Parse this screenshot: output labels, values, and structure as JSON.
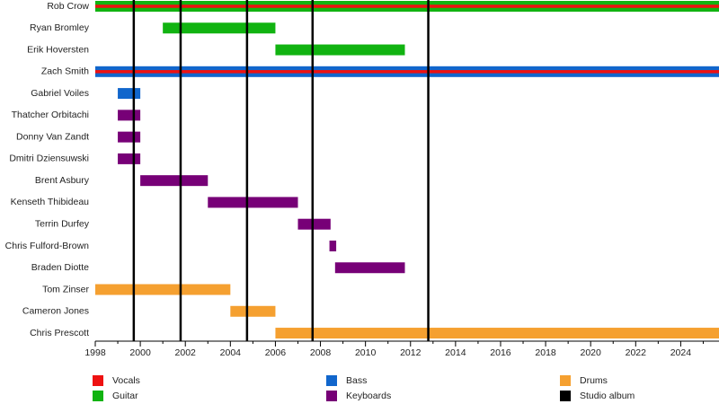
{
  "chart_data": {
    "type": "timeline",
    "categories": [
      "Rob Crow",
      "Ryan Bromley",
      "Erik Hoversten",
      "Zach Smith",
      "Gabriel Voiles",
      "Thatcher Orbitachi",
      "Donny Van Zandt",
      "Dmitri Dziensuwski",
      "Brent Asbury",
      "Kenseth Thibideau",
      "Terrin Durfey",
      "Chris Fulford-Brown",
      "Braden Diotte",
      "Tom Zinser",
      "Cameron Jones",
      "Chris Prescott"
    ],
    "series": [
      {
        "name": "Vocals",
        "color": "#ee1111",
        "values": [
          [
            1998,
            2025.7
          ],
          null,
          null,
          [
            1998,
            2025.7
          ],
          null,
          null,
          null,
          null,
          null,
          null,
          null,
          null,
          null,
          null,
          null,
          null
        ]
      },
      {
        "name": "Guitar",
        "color": "#11b311",
        "values": [
          [
            1998,
            2025.7
          ],
          [
            2001,
            2006
          ],
          [
            2006,
            2011.75
          ],
          null,
          null,
          null,
          null,
          null,
          null,
          null,
          null,
          null,
          null,
          null,
          null,
          null
        ]
      },
      {
        "name": "Bass",
        "color": "#1166cc",
        "values": [
          null,
          null,
          null,
          [
            1998,
            2025.7
          ],
          [
            1999,
            2000
          ],
          null,
          null,
          null,
          null,
          null,
          null,
          null,
          null,
          null,
          null,
          null
        ]
      },
      {
        "name": "Keyboards",
        "color": "#770077",
        "values": [
          null,
          null,
          null,
          null,
          null,
          [
            1999,
            2000
          ],
          [
            1999,
            2000
          ],
          [
            1999,
            2000
          ],
          [
            2000,
            2003
          ],
          [
            2003,
            2007
          ],
          [
            2007,
            2008.45
          ],
          [
            2008.4,
            2008.7
          ],
          [
            2008.65,
            2011.75
          ],
          null,
          null,
          null
        ]
      },
      {
        "name": "Drums",
        "color": "#f5a030",
        "values": [
          null,
          null,
          null,
          null,
          null,
          null,
          null,
          null,
          null,
          null,
          null,
          null,
          null,
          [
            1998,
            2004
          ],
          [
            2004,
            2006
          ],
          [
            2006,
            2025.7
          ]
        ]
      }
    ],
    "events": {
      "name": "Studio album",
      "color": "#000000",
      "x": [
        1999.71,
        2001.79,
        2004.74,
        2007.65,
        2012.79
      ]
    },
    "xlim": [
      1998,
      2025.7
    ],
    "xticks": [
      1998,
      2000,
      2002,
      2004,
      2006,
      2008,
      2010,
      2012,
      2014,
      2016,
      2018,
      2020,
      2022,
      2024
    ],
    "xticks_minor": [
      1999,
      2001,
      2003,
      2005,
      2007,
      2009,
      2011,
      2013,
      2015,
      2017,
      2019,
      2021,
      2023,
      2025
    ]
  }
}
